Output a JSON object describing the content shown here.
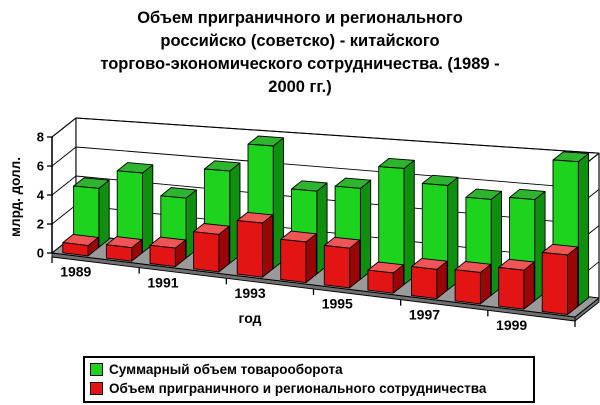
{
  "title": {
    "lines": [
      "Объем приграничного и регионального",
      "российско (советско) - китайского",
      "торгово-экономического сотрудничества. (1989 -",
      "2000 гг.)"
    ]
  },
  "chart_data": {
    "type": "bar",
    "projection": "3d-column",
    "categories": [
      "1989",
      "1990",
      "1991",
      "1992",
      "1993",
      "1994",
      "1995",
      "1996",
      "1997",
      "1998",
      "1999",
      "2000"
    ],
    "series": [
      {
        "name": "Суммарный объем товарооборота",
        "color": "#1ed31e",
        "color_top": "#2eb42e",
        "color_side": "#0e8f0e",
        "values": [
          4.0,
          5.3,
          3.9,
          5.9,
          7.7,
          5.1,
          5.5,
          6.9,
          6.1,
          5.5,
          5.7,
          8.0
        ]
      },
      {
        "name": "Объем приграничного и регионального сотрудничества",
        "color": "#e31414",
        "color_top": "#ef5555",
        "color_side": "#9a0505",
        "values": [
          0.7,
          0.9,
          1.2,
          2.4,
          3.4,
          2.5,
          2.4,
          1.2,
          1.7,
          1.8,
          2.2,
          3.3
        ]
      }
    ],
    "xlabel": "год",
    "ylabel": "млрд. долл.",
    "ylim": [
      0,
      8
    ],
    "yticks": [
      0,
      2,
      4,
      6,
      8
    ],
    "xticklabels": [
      "1989",
      "1991",
      "1993",
      "1995",
      "1997",
      "1999"
    ],
    "legend_position": "bottom",
    "grid": true,
    "wall_color": "#ffffff",
    "floor_color": "#9a9a9a",
    "floor_edge_color": "#6f6f6f"
  }
}
